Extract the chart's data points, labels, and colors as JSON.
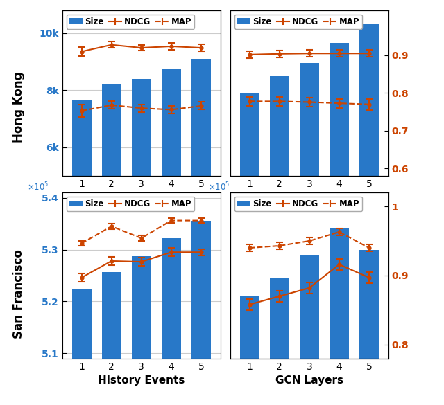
{
  "hk_hist": {
    "x": [
      1,
      2,
      3,
      4,
      5
    ],
    "bar": [
      7650,
      8200,
      8400,
      8750,
      9100
    ],
    "ndcg": [
      0.91,
      0.928,
      0.92,
      0.924,
      0.92
    ],
    "ndcg_err": [
      0.012,
      0.008,
      0.007,
      0.009,
      0.009
    ],
    "map": [
      0.753,
      0.768,
      0.76,
      0.756,
      0.766
    ],
    "map_err": [
      0.016,
      0.01,
      0.01,
      0.01,
      0.01
    ],
    "bar_ylim": [
      5000,
      10800
    ],
    "left_yticks": [
      6000,
      8000,
      10000
    ],
    "left_yticklabels": [
      "6k",
      "8k",
      "10k"
    ],
    "right_ylim": [
      0.58,
      1.02
    ],
    "right_yticks": [],
    "right_yticklabels": []
  },
  "hk_gcn": {
    "x": [
      1,
      2,
      3,
      4,
      5
    ],
    "bar": [
      7920,
      8500,
      8950,
      9650,
      10300
    ],
    "ndcg": [
      0.902,
      0.904,
      0.905,
      0.905,
      0.905
    ],
    "ndcg_err": [
      0.009,
      0.009,
      0.009,
      0.009,
      0.009
    ],
    "map": [
      0.778,
      0.778,
      0.776,
      0.773,
      0.77
    ],
    "map_err": [
      0.012,
      0.012,
      0.012,
      0.012,
      0.015
    ],
    "bar_ylim": [
      5000,
      10800
    ],
    "left_yticks": [],
    "left_yticklabels": [],
    "right_ylim": [
      0.58,
      1.02
    ],
    "right_yticks": [
      0.6,
      0.7,
      0.8,
      0.9
    ],
    "right_yticklabels": [
      "0.6",
      "0.7",
      "0.8",
      "0.9"
    ]
  },
  "sf_hist": {
    "x": [
      1,
      2,
      3,
      4,
      5
    ],
    "bar": [
      522500,
      525600,
      528700,
      532200,
      535600
    ],
    "ndcg": [
      524600,
      527800,
      527650,
      529500,
      529500
    ],
    "ndcg_err": [
      800,
      800,
      800,
      800,
      600
    ],
    "map": [
      531200,
      534500,
      532200,
      535600,
      535600
    ],
    "map_err": [
      500,
      500,
      500,
      500,
      500
    ],
    "bar_ylim": [
      509000,
      541000
    ],
    "left_yticks": [
      510000,
      520000,
      530000,
      540000
    ],
    "left_yticklabels": [
      "5.1",
      "5.2",
      "5.3",
      "5.4"
    ],
    "right_ylim": [
      509000,
      541000
    ],
    "right_yticks": [],
    "right_yticklabels": [],
    "show_scale": true
  },
  "sf_gcn": {
    "x": [
      1,
      2,
      3,
      4,
      5
    ],
    "bar": [
      521000,
      524500,
      529000,
      534200,
      530000
    ],
    "ndcg": [
      0.858,
      0.87,
      0.882,
      0.916,
      0.897
    ],
    "ndcg_err": [
      0.008,
      0.008,
      0.008,
      0.008,
      0.008
    ],
    "map": [
      0.94,
      0.943,
      0.95,
      0.963,
      0.94
    ],
    "map_err": [
      0.005,
      0.005,
      0.005,
      0.005,
      0.005
    ],
    "bar_ylim": [
      509000,
      541000
    ],
    "left_yticks": [],
    "left_yticklabels": [],
    "right_ylim": [
      0.78,
      1.02
    ],
    "right_yticks": [
      0.8,
      0.9,
      1.0
    ],
    "right_yticklabels": [
      "0.8",
      "0.9",
      "1"
    ],
    "show_scale": true
  },
  "bar_color": "#2878c8",
  "line_color": "#cc4400"
}
